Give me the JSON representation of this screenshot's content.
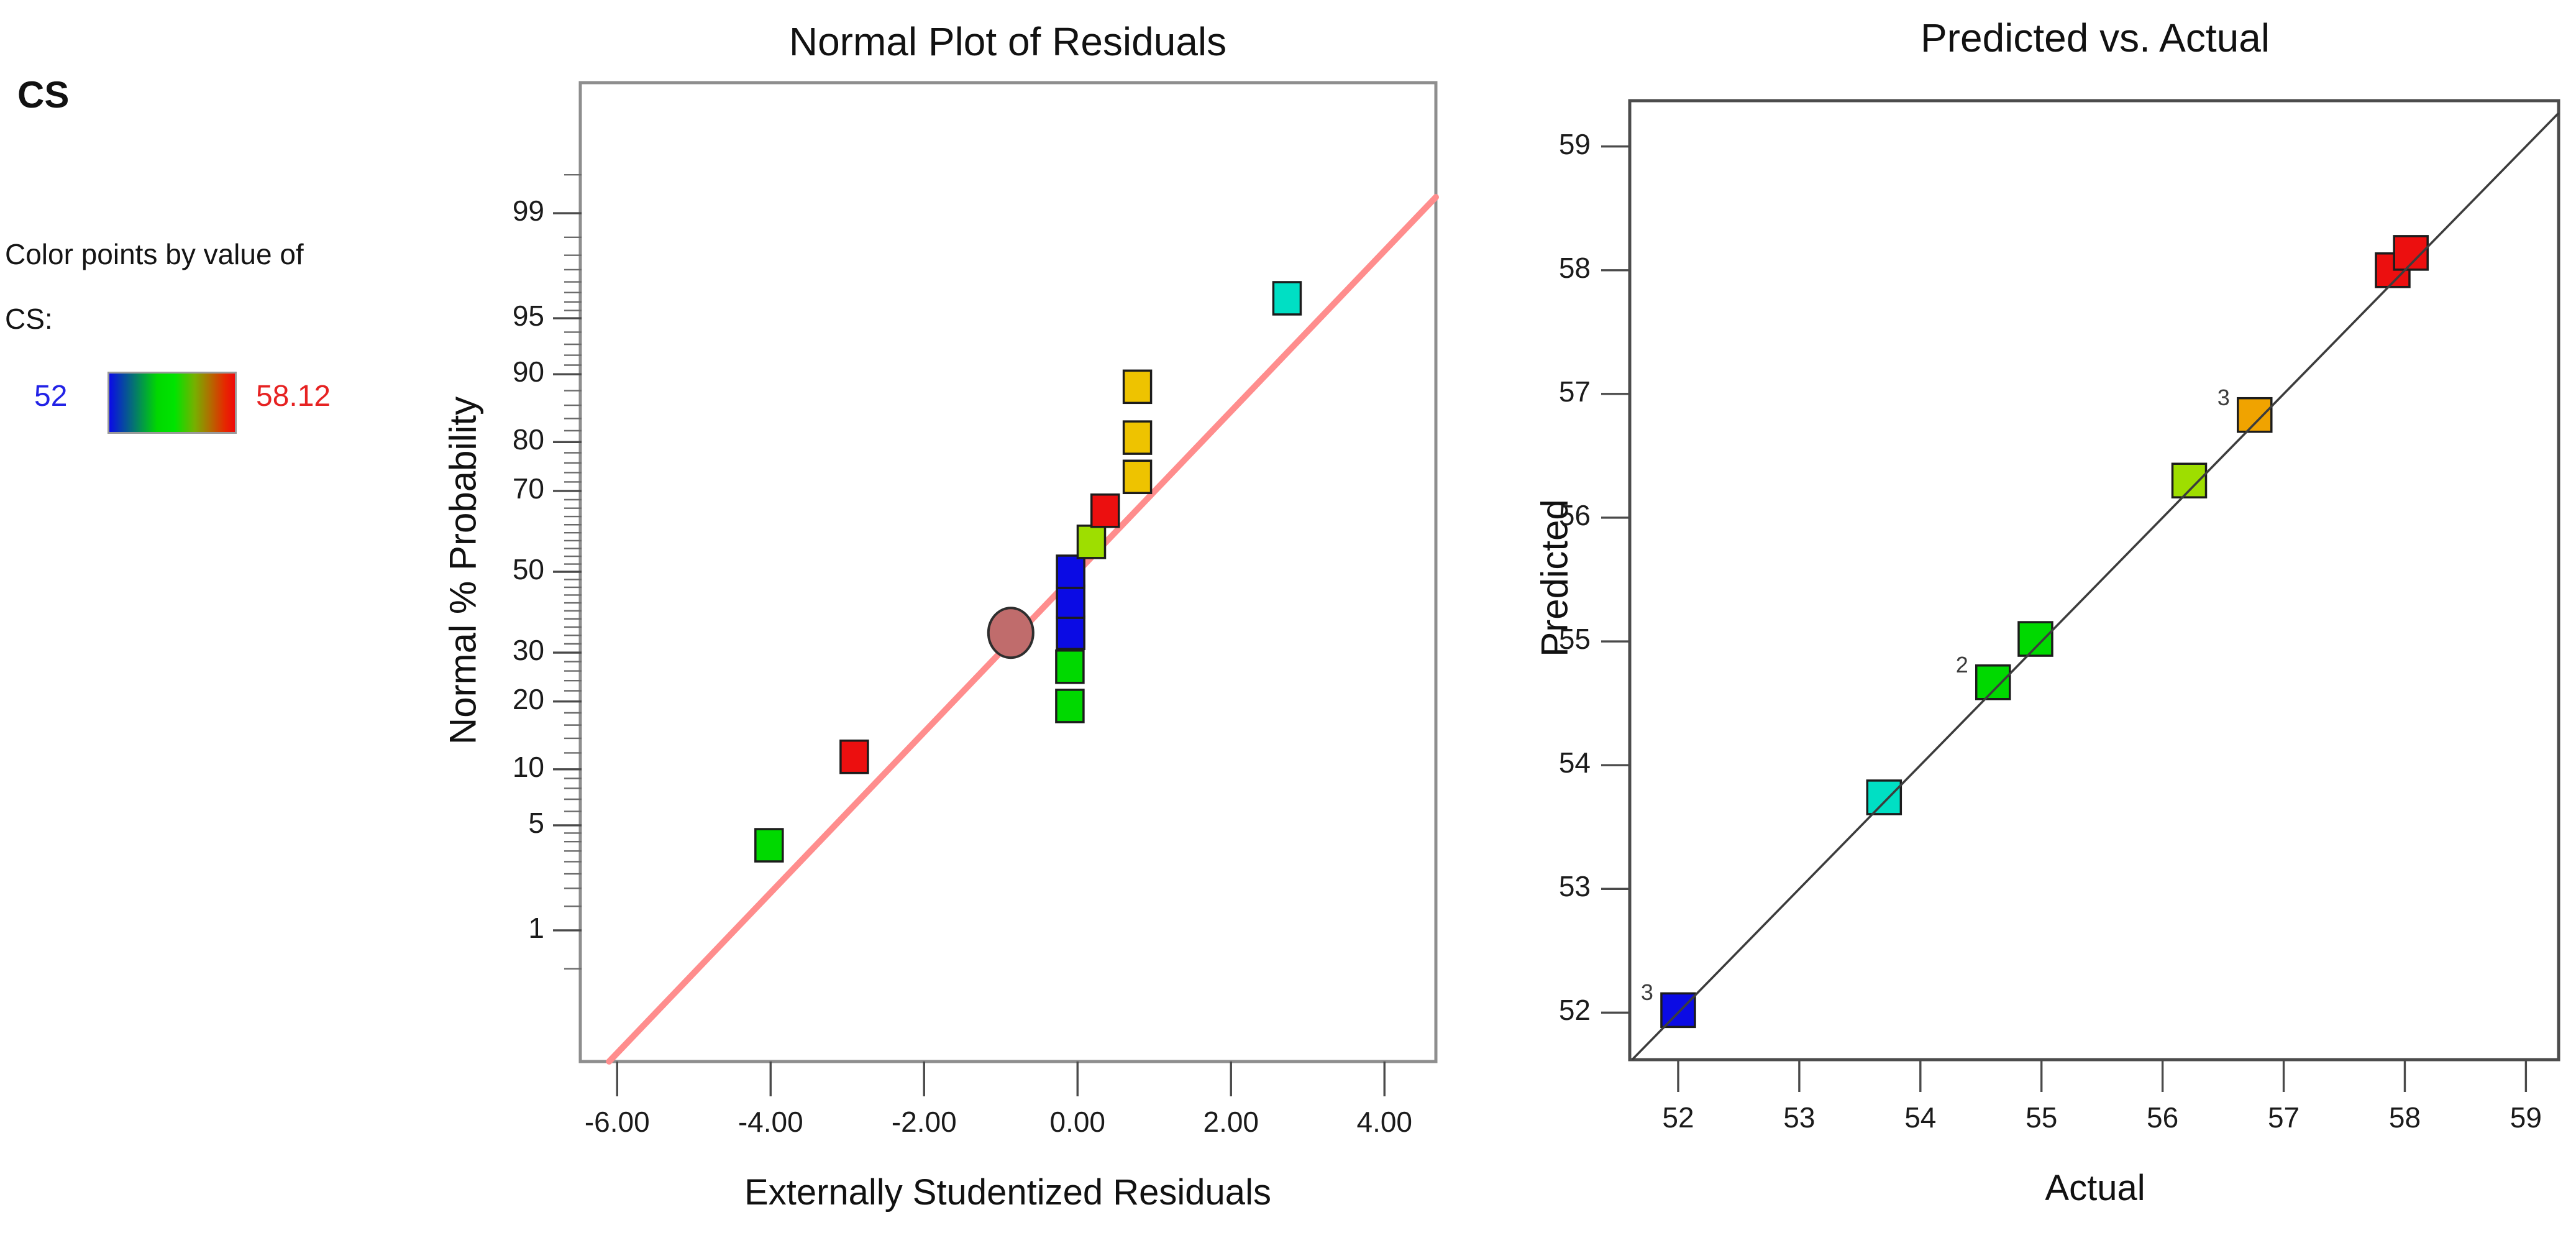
{
  "legend": {
    "title": "CS",
    "caption_line1": "Color points by value of",
    "caption_line2": "CS:",
    "min_label": "52",
    "max_label": "58.12",
    "min_label_color": "#2222e6",
    "max_label_color": "#e62222",
    "gradient_stops": [
      [
        "0%",
        "#0a0ae8"
      ],
      [
        "38%",
        "#00d800"
      ],
      [
        "52%",
        "#00e400"
      ],
      [
        "68%",
        "#76b000"
      ],
      [
        "80%",
        "#b06e00"
      ],
      [
        "92%",
        "#e62800"
      ],
      [
        "100%",
        "#ee0a0a"
      ]
    ]
  },
  "palette": {
    "blue": "#0b0be4",
    "green": "#00d900",
    "cyan": "#00dfc4",
    "yellow-green": "#9ede00",
    "gold": "#eec300",
    "orange": "#f0a300",
    "red": "#ec0f0f"
  },
  "chart_data": [
    {
      "type": "scatter",
      "title": "Normal Plot of Residuals",
      "xlabel": "Externally Studentized Residuals",
      "ylabel": "Normal % Probability",
      "y_scale": "normal-probability",
      "xlim": [
        -6.48,
        4.67
      ],
      "x_ticks": [
        {
          "v": -6,
          "label": "-6.00"
        },
        {
          "v": -4,
          "label": "-4.00"
        },
        {
          "v": -2,
          "label": "-2.00"
        },
        {
          "v": 0,
          "label": "0.00"
        },
        {
          "v": 2,
          "label": "2.00"
        },
        {
          "v": 4,
          "label": "4.00"
        }
      ],
      "y_major_ticks": [
        {
          "v": 99,
          "label": "99"
        },
        {
          "v": 95,
          "label": "95"
        },
        {
          "v": 90,
          "label": "90"
        },
        {
          "v": 80,
          "label": "80"
        },
        {
          "v": 70,
          "label": "70"
        },
        {
          "v": 50,
          "label": "50"
        },
        {
          "v": 30,
          "label": "30"
        },
        {
          "v": 20,
          "label": "20"
        },
        {
          "v": 10,
          "label": "10"
        },
        {
          "v": 5,
          "label": "5"
        },
        {
          "v": 1,
          "label": "1"
        }
      ],
      "fit_line": {
        "z_per_residual": 0.5205,
        "color": "#ff8d8d"
      },
      "points": [
        {
          "x": -4.02,
          "p": 3.8,
          "color": "green"
        },
        {
          "x": -2.91,
          "p": 11.5,
          "color": "red"
        },
        {
          "x": -0.1,
          "p": 19.2,
          "color": "green"
        },
        {
          "x": -0.1,
          "p": 26.9,
          "color": "green"
        },
        {
          "x": -0.09,
          "p": 34.6,
          "color": "blue"
        },
        {
          "x": -0.09,
          "p": 42.3,
          "color": "blue"
        },
        {
          "x": -0.09,
          "p": 50.0,
          "color": "blue"
        },
        {
          "x": 0.18,
          "p": 57.7,
          "color": "yellow-green"
        },
        {
          "x": 0.36,
          "p": 65.4,
          "color": "red"
        },
        {
          "x": 0.78,
          "p": 73.1,
          "color": "gold"
        },
        {
          "x": 0.78,
          "p": 80.8,
          "color": "gold"
        },
        {
          "x": 0.78,
          "p": 88.5,
          "color": "gold"
        },
        {
          "x": 2.73,
          "p": 96.2,
          "color": "cyan"
        }
      ],
      "highlight_point": {
        "x": -0.87,
        "p": 34.6,
        "shape": "circle",
        "fill": "#c06c6c",
        "stroke": "#2e2e2e"
      }
    },
    {
      "type": "scatter",
      "title": "Predicted vs. Actual",
      "xlabel": "Actual",
      "ylabel": "Predicted",
      "xlim": [
        51.6,
        59.27
      ],
      "ylim": [
        51.62,
        59.37
      ],
      "x_ticks": [
        {
          "v": 52,
          "label": "52"
        },
        {
          "v": 53,
          "label": "53"
        },
        {
          "v": 54,
          "label": "54"
        },
        {
          "v": 55,
          "label": "55"
        },
        {
          "v": 56,
          "label": "56"
        },
        {
          "v": 57,
          "label": "57"
        },
        {
          "v": 58,
          "label": "58"
        },
        {
          "v": 59,
          "label": "59"
        }
      ],
      "y_ticks": [
        {
          "v": 52,
          "label": "52"
        },
        {
          "v": 53,
          "label": "53"
        },
        {
          "v": 54,
          "label": "54"
        },
        {
          "v": 55,
          "label": "55"
        },
        {
          "v": 56,
          "label": "56"
        },
        {
          "v": 57,
          "label": "57"
        },
        {
          "v": 58,
          "label": "58"
        },
        {
          "v": 59,
          "label": "59"
        }
      ],
      "identity_line": {
        "color": "#3c3c3c"
      },
      "points": [
        {
          "x": 52.0,
          "y": 52.02,
          "color": "blue",
          "count": "3"
        },
        {
          "x": 53.7,
          "y": 53.74,
          "color": "cyan"
        },
        {
          "x": 54.6,
          "y": 54.67,
          "color": "green",
          "count": "2"
        },
        {
          "x": 54.95,
          "y": 55.02,
          "color": "green"
        },
        {
          "x": 56.22,
          "y": 56.3,
          "color": "yellow-green"
        },
        {
          "x": 56.76,
          "y": 56.83,
          "color": "orange",
          "count": "3"
        },
        {
          "x": 57.9,
          "y": 58.0,
          "color": "red"
        },
        {
          "x": 58.05,
          "y": 58.14,
          "color": "red"
        }
      ]
    }
  ]
}
